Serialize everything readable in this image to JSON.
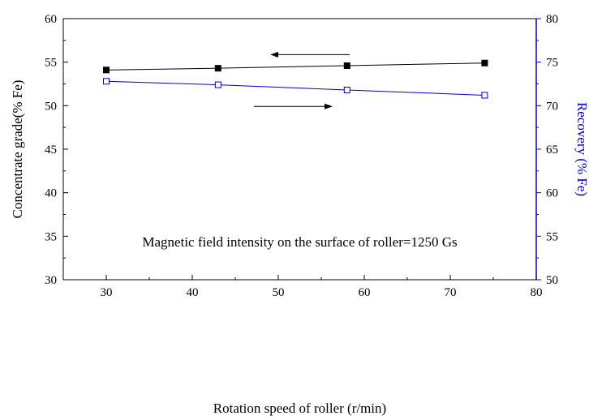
{
  "chart_data": {
    "type": "line",
    "x": [
      30,
      43,
      58,
      74
    ],
    "xlabel": "Rotation speed of roller (r/min)",
    "xlim": [
      25,
      80
    ],
    "xticks": [
      30,
      40,
      50,
      60,
      70,
      80
    ],
    "ylabel_left": "Concentrate grade(% Fe)",
    "ylim_left": [
      30,
      60
    ],
    "yticks_left": [
      30,
      35,
      40,
      45,
      50,
      55,
      60
    ],
    "ylabel_right": "Recovery (% Fe)",
    "ylim_right": [
      50,
      80
    ],
    "yticks_right": [
      50,
      55,
      60,
      65,
      70,
      75,
      80
    ],
    "annotation": "Magnetic field intensity on the surface of roller=1250 Gs",
    "grid": false,
    "series": [
      {
        "axis": "left",
        "values": [
          54.1,
          54.3,
          54.6,
          54.9
        ],
        "fit": [
          54.1,
          54.3,
          54.6,
          54.9
        ],
        "color": "#000000",
        "marker": "filled-square",
        "arrow_direction": "left"
      },
      {
        "axis": "right",
        "values": [
          72.8,
          72.4,
          71.8,
          71.2
        ],
        "fit": [
          72.8,
          72.4,
          71.8,
          71.2
        ],
        "color": "#0000cc",
        "marker": "open-square",
        "arrow_direction": "right"
      }
    ]
  }
}
